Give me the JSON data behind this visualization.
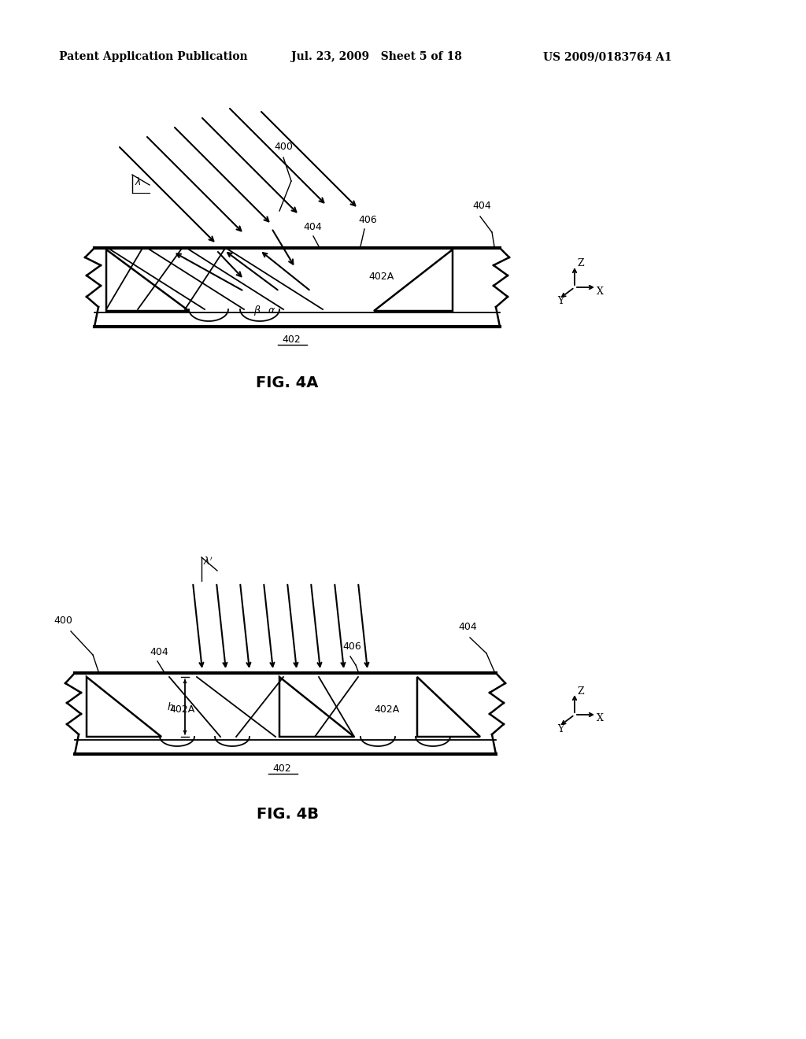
{
  "background_color": "#ffffff",
  "header_left": "Patent Application Publication",
  "header_middle": "Jul. 23, 2009   Sheet 5 of 18",
  "header_right": "US 2009/0183764 A1",
  "fig4a_label": "FIG. 4A",
  "fig4b_label": "FIG. 4B",
  "line_color": "#000000",
  "text_color": "#000000"
}
